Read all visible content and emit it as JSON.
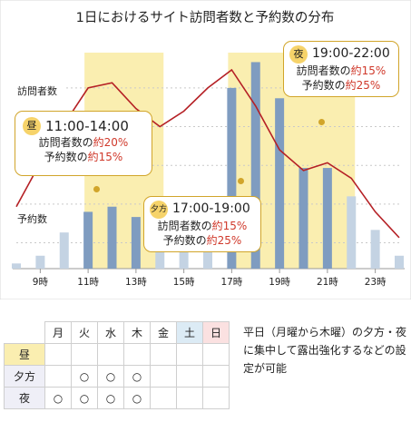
{
  "chart_data": {
    "type": "bar",
    "title": "1日におけるサイト訪問者数と予約数の分布",
    "hours": [
      8,
      9,
      10,
      11,
      12,
      13,
      14,
      15,
      16,
      17,
      18,
      19,
      20,
      21,
      22,
      23,
      24
    ],
    "tick_labels": [
      "9時",
      "11時",
      "13時",
      "15時",
      "17時",
      "19時",
      "21時",
      "23時"
    ],
    "tick_hours": [
      9,
      11,
      13,
      15,
      17,
      19,
      21,
      23
    ],
    "highlight_bands": [
      [
        11,
        14
      ],
      [
        17,
        19
      ],
      [
        19,
        22
      ]
    ],
    "series": [
      {
        "name": "訪問者数",
        "kind": "line",
        "values": [
          24,
          41,
          56,
          70,
          72,
          62,
          55,
          61,
          70,
          77,
          63,
          46,
          38,
          41,
          35,
          22,
          12
        ]
      },
      {
        "name": "予約数",
        "kind": "bar",
        "values": [
          2,
          5,
          14,
          22,
          24,
          20,
          14,
          21,
          24,
          70,
          80,
          66,
          39,
          39,
          28,
          15,
          5
        ]
      }
    ],
    "ylim": [
      0,
      90
    ],
    "grid": true
  },
  "labels": {
    "visitors": "訪問者数",
    "bookings": "予約数"
  },
  "callouts": [
    {
      "badge": "昼",
      "time": "11:00-14:00",
      "visitors_text": "訪問者数の",
      "visitors_pct": "約20%",
      "bookings_text": "予約数の",
      "bookings_pct": "約15%"
    },
    {
      "badge": "夕方",
      "time": "17:00-19:00",
      "visitors_text": "訪問者数の",
      "visitors_pct": "約15%",
      "bookings_text": "予約数の",
      "bookings_pct": "約25%"
    },
    {
      "badge": "夜",
      "time": "19:00-22:00",
      "visitors_text": "訪問者数の",
      "visitors_pct": "約15%",
      "bookings_text": "予約数の",
      "bookings_pct": "約25%"
    }
  ],
  "schedule": {
    "days": [
      "月",
      "火",
      "水",
      "木",
      "金",
      "土",
      "日"
    ],
    "rows": [
      {
        "label": "昼",
        "marks": [
          "",
          "",
          "",
          "",
          "",
          "",
          ""
        ]
      },
      {
        "label": "夕方",
        "marks": [
          "",
          "○",
          "○",
          "○",
          "",
          "",
          ""
        ]
      },
      {
        "label": "夜",
        "marks": [
          "○",
          "○",
          "○",
          "○",
          "",
          "",
          ""
        ]
      }
    ]
  },
  "note": "平日（月曜から木曜）の夕方・夜に集中して露出強化するなどの設定が可能",
  "colors": {
    "line": "#b52025",
    "bar_main": "#7f9cc0",
    "bar_light": "#c4d3e3",
    "band": "#faeeb0",
    "accent": "#d1a52a"
  }
}
